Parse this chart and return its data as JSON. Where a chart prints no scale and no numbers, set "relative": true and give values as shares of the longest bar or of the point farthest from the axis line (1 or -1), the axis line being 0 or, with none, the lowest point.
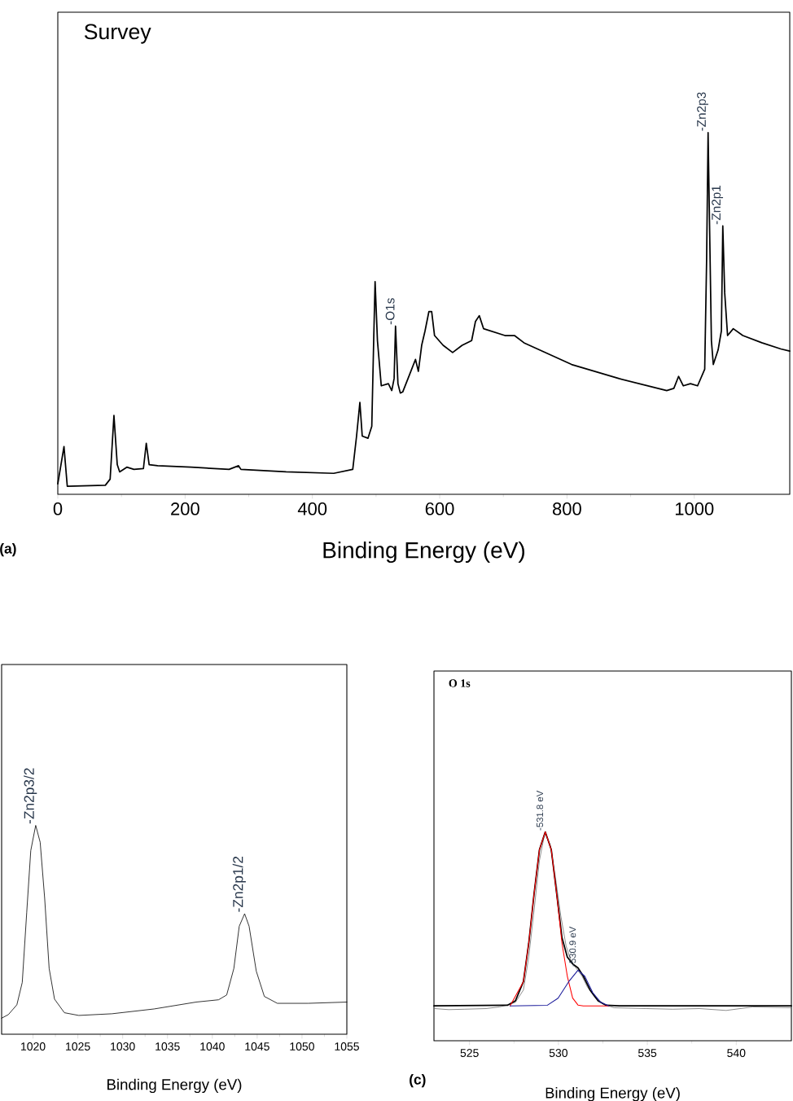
{
  "chart_data": [
    {
      "type": "line",
      "title": "Survey",
      "xlabel": "Binding Energy (eV)",
      "relative": true,
      "xlim": [
        0,
        1150
      ],
      "xticks": [
        0,
        200,
        400,
        600,
        800,
        1000
      ],
      "series": [
        {
          "color": "#000000",
          "x": [
            0,
            9.7,
            14.9,
            74.7,
            82.2,
            88.2,
            93.4,
            97.2,
            108.4,
            119.6,
            134.5,
            139.0,
            143.5,
            157.0,
            209.3,
            269.1,
            284.0,
            287.7,
            358.7,
            433.5,
            463.4,
            469.4,
            474.6,
            478.3,
            487.3,
            493.3,
            496.3,
            498.5,
            502.2,
            508.2,
            519.4,
            524.7,
            528.4,
            530.6,
            534.4,
            538.1,
            541.9,
            553.1,
            562.0,
            566.5,
            571.7,
            577.0,
            583.0,
            587.4,
            591.9,
            605.4,
            620.3,
            635.3,
            650.2,
            656.2,
            662.2,
            668.9,
            702.5,
            717.5,
            732.4,
            807.2,
            881.9,
            956.7,
            967.9,
            975.3,
            982.8,
            994.0,
            1005.2,
            1016.4,
            1019.4,
            1021.7,
            1023.9,
            1026.9,
            1029.9,
            1037.4,
            1042.6,
            1044.8,
            1047.8,
            1052.3,
            1061.3,
            1076.2,
            1106.1,
            1136.0,
            1150
          ],
          "values": [
            0.029,
            0.132,
            0.022,
            0.025,
            0.042,
            0.218,
            0.082,
            0.062,
            0.075,
            0.069,
            0.071,
            0.141,
            0.082,
            0.079,
            0.075,
            0.069,
            0.079,
            0.069,
            0.062,
            0.058,
            0.069,
            0.161,
            0.254,
            0.161,
            0.155,
            0.188,
            0.425,
            0.588,
            0.425,
            0.3,
            0.306,
            0.287,
            0.32,
            0.465,
            0.306,
            0.28,
            0.283,
            0.333,
            0.373,
            0.34,
            0.412,
            0.452,
            0.505,
            0.505,
            0.439,
            0.412,
            0.392,
            0.412,
            0.425,
            0.478,
            0.494,
            0.458,
            0.439,
            0.439,
            0.419,
            0.359,
            0.32,
            0.287,
            0.293,
            0.326,
            0.3,
            0.306,
            0.3,
            0.346,
            0.65,
            1,
            0.756,
            0.425,
            0.359,
            0.399,
            0.452,
            0.742,
            0.557,
            0.439,
            0.458,
            0.439,
            0.419,
            0.402,
            0.396
          ]
        }
      ],
      "annotations": [
        {
          "text": "-O1s",
          "x": 530.6,
          "y": 0.465
        },
        {
          "text": "-Zn2p3",
          "x": 1021.7,
          "y": 1
        },
        {
          "text": "-Zn2p1",
          "x": 1044.8,
          "y": 0.742
        },
        "(a)"
      ]
    },
    {
      "type": "line",
      "xlabel": "Binding Energy (eV)",
      "relative": true,
      "xlim": [
        1016.5,
        1055
      ],
      "xticks": [
        1020,
        1025,
        1030,
        1035,
        1040,
        1045,
        1050,
        1055
      ],
      "series": [
        {
          "color": "#000000",
          "x": [
            1016.5,
            1017.25,
            1018.2,
            1018.8,
            1019.3,
            1019.75,
            1020.3,
            1020.8,
            1021.3,
            1021.8,
            1022.4,
            1023.5,
            1025.1,
            1028.8,
            1033.5,
            1038.2,
            1040.7,
            1041.6,
            1042.4,
            1043.0,
            1043.6,
            1044.1,
            1044.9,
            1045.8,
            1047.25,
            1050.7,
            1055
          ],
          "values": [
            0.077,
            0.094,
            0.141,
            0.248,
            0.584,
            0.879,
            1,
            0.919,
            0.651,
            0.315,
            0.168,
            0.103,
            0.09,
            0.098,
            0.121,
            0.154,
            0.165,
            0.188,
            0.315,
            0.517,
            0.577,
            0.517,
            0.302,
            0.181,
            0.148,
            0.148,
            0.154
          ]
        }
      ],
      "annotations": [
        {
          "text": "-Zn2p3/2",
          "x": 1020.3,
          "y": 1
        },
        {
          "text": "-Zn2p1/2",
          "x": 1043.6,
          "y": 0.577
        }
      ]
    },
    {
      "type": "line",
      "title": "O 1s",
      "xlabel": "Binding Energy (eV)",
      "relative": true,
      "xlim": [
        523,
        543.1
      ],
      "xticks": [
        525,
        530,
        535,
        540
      ],
      "series": [
        {
          "color": "#555555",
          "x": [
            523.05,
            523.83,
            524.73,
            525.93,
            526.68,
            527.13,
            527.58,
            528.03,
            528.33,
            528.63,
            528.93,
            529.23,
            529.53,
            529.83,
            530.13,
            530.43,
            530.73,
            531.1,
            531.33,
            531.63,
            532.08,
            532.53,
            533.13,
            534.93,
            536.43,
            537.93,
            539.43,
            540.93,
            543.1
          ],
          "values": [
            0.154,
            0.149,
            0.151,
            0.154,
            0.162,
            0.171,
            0.184,
            0.243,
            0.401,
            0.625,
            0.862,
            0.993,
            0.941,
            0.783,
            0.599,
            0.454,
            0.375,
            0.336,
            0.309,
            0.257,
            0.204,
            0.175,
            0.158,
            0.154,
            0.151,
            0.154,
            0.145,
            0.162,
            0.158
          ]
        },
        {
          "color": "#000000",
          "x": [
            523,
            527.13,
            527.58,
            528.03,
            528.33,
            528.63,
            528.93,
            529.26,
            529.6,
            529.9,
            530.2,
            530.5,
            530.8,
            531.1,
            531.4,
            531.78,
            532.23,
            532.68,
            533.43,
            543.1
          ],
          "values": [
            0.167,
            0.17,
            0.191,
            0.283,
            0.467,
            0.704,
            0.914,
            1,
            0.914,
            0.704,
            0.493,
            0.401,
            0.368,
            0.349,
            0.309,
            0.243,
            0.191,
            0.17,
            0.167,
            0.167
          ]
        },
        {
          "color": "#ff0000",
          "x": [
            527.28,
            528.03,
            528.33,
            528.63,
            528.93,
            529.26,
            529.6,
            529.9,
            530.2,
            530.5,
            530.8,
            531.1,
            531.4,
            532.83
          ],
          "values": [
            0.167,
            0.283,
            0.467,
            0.704,
            0.914,
            1,
            0.914,
            0.704,
            0.467,
            0.309,
            0.204,
            0.171,
            0.167,
            0.167
          ]
        },
        {
          "color": "#1a1a9a",
          "x": [
            527.28,
            529.38,
            529.98,
            530.58,
            531.1,
            531.48,
            531.93,
            532.38,
            532.83
          ],
          "values": [
            0.167,
            0.17,
            0.204,
            0.283,
            0.338,
            0.309,
            0.23,
            0.184,
            0.167
          ]
        }
      ],
      "annotations": [
        {
          "text": "-531.8 eV",
          "x": 529.26,
          "y": 1
        },
        {
          "text": "-530.9 eV",
          "x": 531.1,
          "y": 0.349
        },
        "(c)"
      ]
    }
  ]
}
